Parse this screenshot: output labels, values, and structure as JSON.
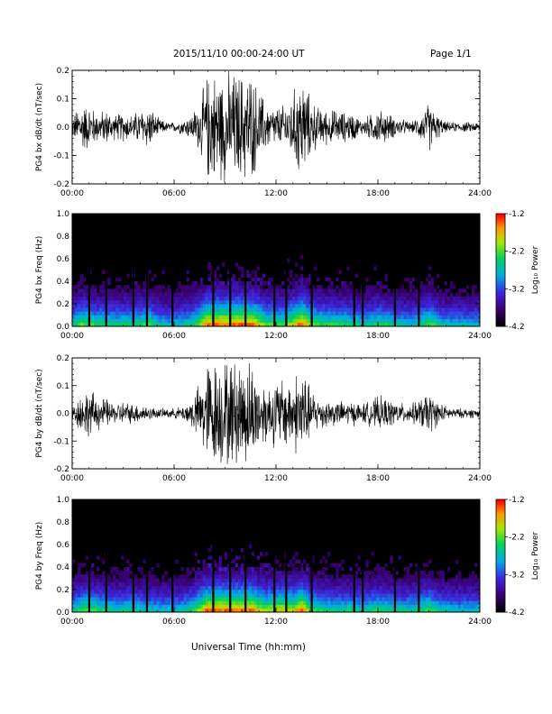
{
  "header": {
    "date_range": "2015/11/10  00:00-24:00 UT",
    "page": "Page 1/1"
  },
  "footer": {
    "xlabel": "Universal Time (hh:mm)"
  },
  "colorbar": {
    "ticks": [
      "-1.2",
      "-2.2",
      "-3.2",
      "-4.2"
    ],
    "range": [
      -4.2,
      -1.2
    ],
    "label": "Log₁₀ Power"
  },
  "chart_data": [
    {
      "type": "line",
      "ylabel": "PG4 bx dB/dt (nT/sec)",
      "xlim": [
        0,
        24
      ],
      "ylim": [
        -0.2,
        0.2
      ],
      "x_ticks": [
        "00:00",
        "06:00",
        "12:00",
        "18:00",
        "24:00"
      ],
      "y_ticks": [
        "0.2",
        "0.1",
        "0.0",
        "-0.1",
        "-0.2"
      ],
      "envelope": {
        "hours": [
          0,
          0.5,
          1,
          1.5,
          2,
          2.5,
          3,
          3.5,
          4,
          4.5,
          5,
          5.5,
          6,
          6.5,
          7,
          7.5,
          8,
          8.5,
          9,
          9.5,
          10,
          10.5,
          11,
          11.5,
          12,
          12.5,
          13,
          13.5,
          14,
          14.5,
          15,
          15.5,
          16,
          16.5,
          17,
          17.5,
          18,
          18.5,
          19,
          19.5,
          20,
          20.5,
          21,
          21.5,
          22,
          22.5,
          23,
          23.5,
          24
        ],
        "amplitude": [
          0.04,
          0.1,
          0.09,
          0.06,
          0.07,
          0.05,
          0.06,
          0.05,
          0.07,
          0.09,
          0.04,
          0.02,
          0.02,
          0.03,
          0.05,
          0.1,
          0.22,
          0.22,
          0.22,
          0.22,
          0.22,
          0.22,
          0.15,
          0.09,
          0.08,
          0.09,
          0.14,
          0.22,
          0.12,
          0.08,
          0.07,
          0.07,
          0.06,
          0.06,
          0.03,
          0.05,
          0.07,
          0.06,
          0.04,
          0.03,
          0.02,
          0.05,
          0.1,
          0.05,
          0.02,
          0.02,
          0.02,
          0.02,
          0.02
        ]
      }
    },
    {
      "type": "heatmap",
      "ylabel": "PG4 bx Freq (Hz)",
      "xlim": [
        0,
        24
      ],
      "ylim": [
        0,
        1
      ],
      "x_ticks": [
        "00:00",
        "06:00",
        "12:00",
        "18:00",
        "24:00"
      ],
      "y_ticks": [
        "1.0",
        "0.8",
        "0.6",
        "0.4",
        "0.2",
        "0.0"
      ],
      "zlim": [
        -4.2,
        -1.2
      ],
      "gap_hours": [
        1.0,
        2.0,
        3.6,
        4.4,
        5.9,
        8.3,
        9.3,
        10.2,
        11.9,
        12.6,
        14.1,
        16.6,
        17.1,
        19.0,
        20.4
      ]
    },
    {
      "type": "line",
      "ylabel": "PG4 by dB/dt (nT/sec)",
      "xlim": [
        0,
        24
      ],
      "ylim": [
        -0.2,
        0.2
      ],
      "x_ticks": [
        "00:00",
        "06:00",
        "12:00",
        "18:00",
        "24:00"
      ],
      "y_ticks": [
        "0.2",
        "0.1",
        "0.0",
        "-0.1",
        "-0.2"
      ],
      "envelope": {
        "hours": [
          0,
          0.5,
          1,
          1.5,
          2,
          2.5,
          3,
          3.5,
          4,
          4.5,
          5,
          5.5,
          6,
          6.5,
          7,
          7.5,
          8,
          8.5,
          9,
          9.5,
          10,
          10.5,
          11,
          11.5,
          12,
          12.5,
          13,
          13.5,
          14,
          14.5,
          15,
          15.5,
          16,
          16.5,
          17,
          17.5,
          18,
          18.5,
          19,
          19.5,
          20,
          20.5,
          21,
          21.5,
          22,
          22.5,
          23,
          23.5,
          24
        ],
        "amplitude": [
          0.03,
          0.08,
          0.1,
          0.07,
          0.06,
          0.04,
          0.05,
          0.04,
          0.04,
          0.03,
          0.02,
          0.02,
          0.02,
          0.03,
          0.06,
          0.12,
          0.22,
          0.22,
          0.22,
          0.22,
          0.22,
          0.22,
          0.15,
          0.12,
          0.14,
          0.15,
          0.14,
          0.22,
          0.1,
          0.07,
          0.06,
          0.05,
          0.05,
          0.05,
          0.04,
          0.05,
          0.07,
          0.06,
          0.05,
          0.04,
          0.04,
          0.06,
          0.09,
          0.05,
          0.03,
          0.02,
          0.02,
          0.02,
          0.02
        ]
      }
    },
    {
      "type": "heatmap",
      "ylabel": "PG4 by Freq (Hz)",
      "xlim": [
        0,
        24
      ],
      "ylim": [
        0,
        1
      ],
      "x_ticks": [
        "00:00",
        "06:00",
        "12:00",
        "18:00",
        "24:00"
      ],
      "y_ticks": [
        "1.0",
        "0.8",
        "0.6",
        "0.4",
        "0.2",
        "0.0"
      ],
      "zlim": [
        -4.2,
        -1.2
      ],
      "gap_hours": [
        1.0,
        2.0,
        3.6,
        4.4,
        5.9,
        8.3,
        9.3,
        10.2,
        11.9,
        12.6,
        14.1,
        16.6,
        17.1,
        19.0,
        20.4
      ]
    }
  ]
}
